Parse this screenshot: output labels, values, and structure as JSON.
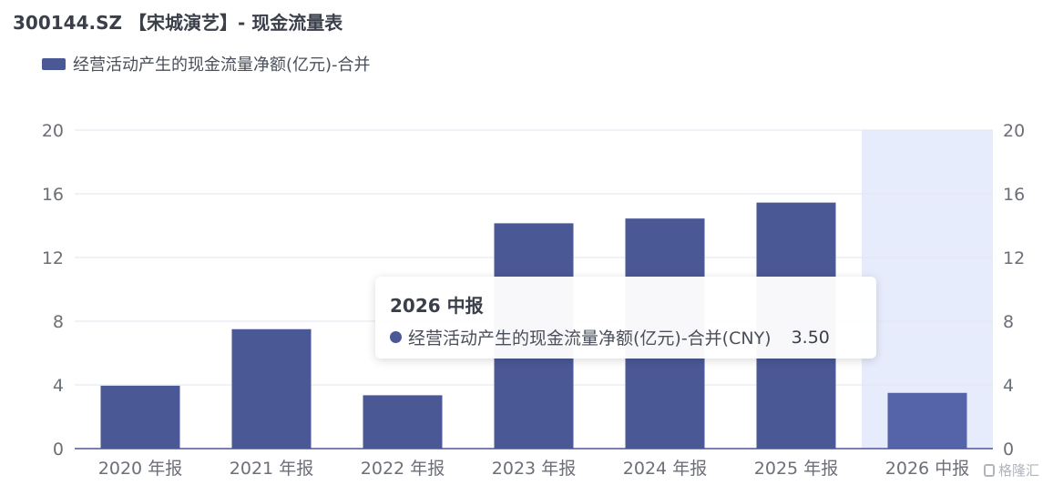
{
  "title": "300144.SZ 【宋城演艺】- 现金流量表",
  "legend": {
    "label": "经营活动产生的现金流量净额(亿元)-合并",
    "color": "#4b5896"
  },
  "tooltip": {
    "title": "2026 中报",
    "series_label": "经营活动产生的现金流量净额(亿元)-合并(CNY)",
    "value": "3.50",
    "color": "#4b5896"
  },
  "watermark": "格隆汇",
  "colors": {
    "bar": "#4b5896",
    "bar_highlight": "#5563a8",
    "highlight_band": "#e6ecfb",
    "grid": "#e3e6ef",
    "axis": "#4b5896"
  },
  "chart_data": {
    "type": "bar",
    "title": "300144.SZ 【宋城演艺】- 现金流量表",
    "categories": [
      "2020 年报",
      "2021 年报",
      "2022 年报",
      "2023 年报",
      "2024 年报",
      "2025 年报",
      "2026 中报"
    ],
    "series": [
      {
        "name": "经营活动产生的现金流量净额(亿元)-合并",
        "values": [
          3.95,
          7.5,
          3.35,
          14.15,
          14.45,
          15.45,
          3.5
        ]
      }
    ],
    "ylim": [
      0,
      20
    ],
    "yticks": [
      0,
      4,
      8,
      12,
      16,
      20
    ],
    "right_axis_ticks": [
      0,
      4,
      8,
      12,
      16,
      20
    ],
    "highlighted_category": "2026 中报",
    "grid": true,
    "legend_position": "top-left"
  }
}
